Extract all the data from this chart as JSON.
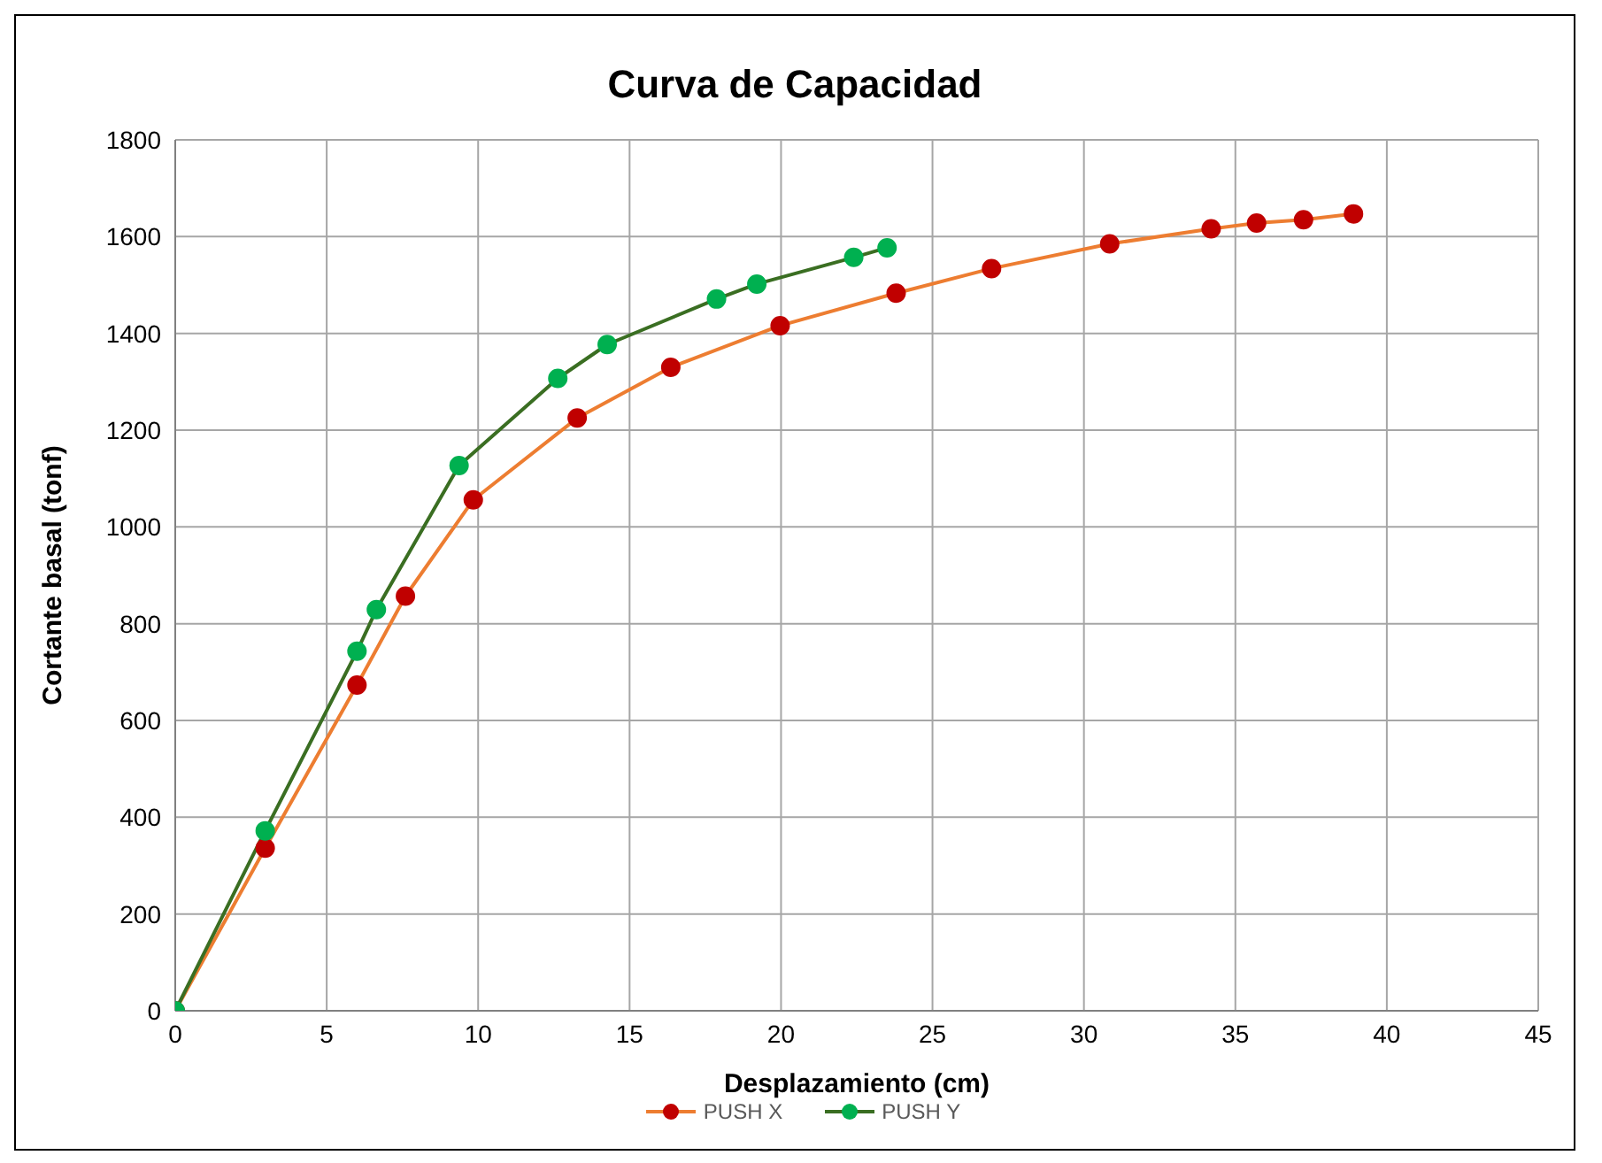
{
  "chart_data": {
    "type": "line",
    "title": "Curva de Capacidad",
    "xlabel": "Desplazamiento (cm)",
    "ylabel": "Cortante basal (tonf)",
    "xlim": [
      0,
      45
    ],
    "xticks": [
      0,
      5,
      10,
      15,
      20,
      25,
      30,
      35,
      40,
      45
    ],
    "ylim": [
      0,
      1800
    ],
    "yticks": [
      0,
      200,
      400,
      600,
      800,
      1000,
      1200,
      1400,
      1600,
      1800
    ],
    "grid": true,
    "legend": "bottom",
    "marker": "circle",
    "line_style": "solid",
    "series": [
      {
        "name": "PUSH X",
        "color": "#ed7d31",
        "colors": [
          "#c00000",
          "#c00000",
          "#c00000",
          "#c00000",
          "#c00000",
          "#c00000",
          "#c00000",
          "#c00000",
          "#c00000",
          "#c00000",
          "#c00000",
          "#c00000",
          "#c00000",
          "#c00000",
          "#c00000"
        ],
        "x": [
          0,
          2.97,
          6.0,
          7.6,
          9.84,
          13.27,
          16.36,
          19.97,
          23.8,
          26.95,
          30.85,
          34.2,
          35.7,
          37.25,
          38.9
        ],
        "values": [
          0,
          336,
          673,
          857,
          1056,
          1225,
          1330,
          1416,
          1483,
          1534,
          1585,
          1616,
          1628,
          1635,
          1647
        ]
      },
      {
        "name": "PUSH Y",
        "color": "#3a6e22",
        "colors": [
          "#00b050",
          "#00b050",
          "#00b050",
          "#00b050",
          "#00b050",
          "#00b050",
          "#00b050",
          "#00b050",
          "#00b050",
          "#00b050",
          "#00b050"
        ],
        "x": [
          0,
          2.97,
          6.0,
          6.64,
          9.37,
          12.63,
          14.26,
          17.87,
          19.2,
          22.4,
          23.5
        ],
        "values": [
          0,
          372,
          743,
          829,
          1127,
          1307,
          1377,
          1471,
          1502,
          1557,
          1577
        ]
      }
    ]
  }
}
